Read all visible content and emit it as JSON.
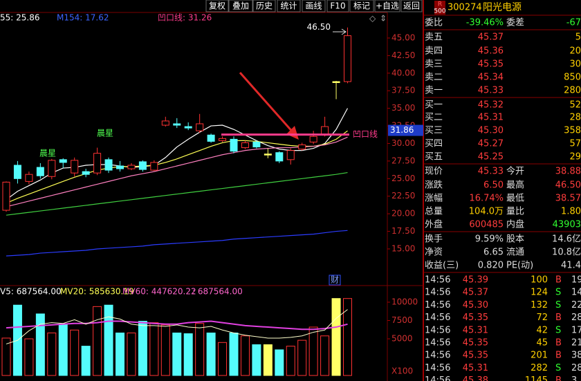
{
  "toolbar": [
    "复权",
    "叠加",
    "历史",
    "统计",
    "画线",
    "F10",
    "标记",
    "+自选",
    "返回"
  ],
  "chart_data": {
    "type": "candlestick",
    "header": [
      "55: 25.86",
      "M154: 17.62",
      "凹口线: 31.26"
    ],
    "ylim": [
      8.8,
      48.44
    ],
    "yticks": [
      {
        "value": 45,
        "label": "45.00"
      },
      {
        "value": 42.5,
        "label": "42.50"
      },
      {
        "value": 40,
        "label": "40.00"
      },
      {
        "value": 37.5,
        "label": "37.50"
      },
      {
        "value": 35,
        "label": "35.00"
      },
      {
        "value": 32.5,
        "label": "32.50"
      },
      {
        "value": 30,
        "label": "30.00"
      },
      {
        "value": 27.5,
        "label": "27.50"
      },
      {
        "value": 25,
        "label": "25.00"
      },
      {
        "value": 22.5,
        "label": "22.50"
      },
      {
        "value": 20,
        "label": "20.00"
      },
      {
        "value": 17.5,
        "label": "17.50"
      },
      {
        "value": 15,
        "label": "15.00"
      }
    ],
    "up_color": "#ff3232",
    "down_color": "#54fcfc",
    "flat_color": "#ffff66",
    "open": [
      20.5,
      26.9,
      24.6,
      26.6,
      25.3,
      27.7,
      25.8,
      26.0,
      25.8,
      27.7,
      26.8,
      26.4,
      27.4,
      26.2,
      32.6,
      32.8,
      32.4,
      31.8,
      31.2,
      30.4,
      30.6,
      29.4,
      30.2,
      28.5,
      28.7,
      27.7,
      29.2,
      30.2,
      31.3,
      38.8,
      38.8
    ],
    "high": [
      24.6,
      27.5,
      26.0,
      27.2,
      27.8,
      27.9,
      28.0,
      26.4,
      29.4,
      28.0,
      27.5,
      27.2,
      27.6,
      27.6,
      33.8,
      33.6,
      33.0,
      34.2,
      31.4,
      31.0,
      31.0,
      30.4,
      30.4,
      29.3,
      28.9,
      29.3,
      30.1,
      31.8,
      33.8,
      38.9,
      46.5
    ],
    "low": [
      20.3,
      24.3,
      24.2,
      25.0,
      24.9,
      26.5,
      25.3,
      25.2,
      25.5,
      25.8,
      26.0,
      26.2,
      26.0,
      26.1,
      32.4,
      32.2,
      31.9,
      31.5,
      30.1,
      30.2,
      28.6,
      29.2,
      29.3,
      27.9,
      27.2,
      27.0,
      29.0,
      29.9,
      31.0,
      36.3,
      38.57
    ],
    "close": [
      24.5,
      25.0,
      25.6,
      25.4,
      27.6,
      27.3,
      27.6,
      25.6,
      28.6,
      26.2,
      26.4,
      26.9,
      26.3,
      27.3,
      33.2,
      32.6,
      32.2,
      32.8,
      30.3,
      30.7,
      28.9,
      30.1,
      29.5,
      28.5,
      27.5,
      29.0,
      29.8,
      31.0,
      32.4,
      38.8,
      45.33
    ],
    "ma_lines": [
      {
        "color": "#ffffff",
        "values": [
          22.0,
          23.2,
          24.0,
          24.8,
          25.8,
          26.5,
          26.6,
          26.9,
          27.0,
          27.0,
          26.8,
          26.6,
          26.7,
          26.9,
          28.0,
          29.5,
          30.6,
          31.6,
          32.5,
          32.6,
          32.0,
          31.2,
          30.4,
          29.7,
          29.2,
          29.0,
          29.0,
          29.3,
          30.0,
          32.0,
          35.0
        ]
      },
      {
        "color": "#ffff55",
        "values": [
          21.5,
          22.2,
          22.8,
          23.4,
          24.0,
          24.6,
          25.2,
          25.7,
          26.2,
          26.5,
          26.7,
          26.7,
          26.8,
          26.9,
          27.3,
          27.8,
          28.4,
          29.0,
          29.6,
          30.1,
          30.4,
          30.4,
          30.3,
          30.1,
          29.9,
          29.7,
          29.6,
          29.6,
          29.9,
          30.6,
          31.8
        ]
      },
      {
        "color": "#ff80c0",
        "values": [
          21.0,
          21.4,
          21.8,
          22.2,
          22.6,
          23.0,
          23.4,
          23.8,
          24.2,
          24.6,
          25.0,
          25.4,
          25.7,
          26.0,
          26.4,
          26.8,
          27.2,
          27.6,
          28.0,
          28.4,
          28.7,
          29.0,
          29.2,
          29.3,
          29.4,
          29.4,
          29.5,
          29.6,
          29.8,
          30.2,
          30.9
        ]
      },
      {
        "color": "#40d040",
        "values": [
          19.8,
          20.0,
          20.2,
          20.4,
          20.6,
          20.8,
          21.0,
          21.2,
          21.4,
          21.6,
          21.8,
          22.0,
          22.2,
          22.4,
          22.6,
          22.8,
          23.0,
          23.2,
          23.4,
          23.6,
          23.8,
          24.0,
          24.2,
          24.4,
          24.6,
          24.8,
          25.0,
          25.2,
          25.4,
          25.6,
          25.86
        ]
      },
      {
        "color": "#2b3cff",
        "values": [
          14.0,
          14.1,
          14.2,
          14.4,
          14.5,
          14.6,
          14.7,
          14.8,
          15.0,
          15.1,
          15.2,
          15.3,
          15.4,
          15.6,
          15.7,
          15.8,
          15.9,
          16.0,
          16.1,
          16.2,
          16.4,
          16.5,
          16.6,
          16.7,
          16.8,
          16.9,
          17.0,
          17.1,
          17.3,
          17.5,
          17.62
        ]
      }
    ],
    "notch_line": {
      "value": 31.26,
      "label": "凹口线",
      "color": "#ff3c8c"
    },
    "last_price_tag": 31.86,
    "high_label": {
      "value": 46.5,
      "label": "46.50"
    },
    "annotations": [
      "晨星",
      "晨星",
      "财"
    ],
    "volume": {
      "header": [
        "V5: 687564.00",
        "MV20: 585630.19",
        "MV60: 447620.22",
        ": 687564.00"
      ],
      "ylim": [
        0,
        10660
      ],
      "yticks": [
        5000,
        7500,
        10000
      ],
      "unit": "X100",
      "values": [
        5100,
        9600,
        5000,
        8400,
        5800,
        7000,
        6200,
        4000,
        9400,
        9600,
        5800,
        5800,
        7400,
        7200,
        6900,
        5800,
        5700,
        7100,
        5800,
        4500,
        5800,
        5400,
        4200,
        4200,
        3500,
        4000,
        4800,
        6600,
        5400,
        10500,
        10500
      ],
      "lines": [
        {
          "color": "#e040e0",
          "values": [
            6500,
            6600,
            6700,
            6800,
            6900,
            7000,
            7100,
            7100,
            7200,
            7400,
            7400,
            7300,
            7200,
            7100,
            7000,
            7000,
            7200,
            7300,
            7400,
            7200,
            7000,
            6800,
            6700,
            6600,
            6500,
            6400,
            6300,
            6300,
            6400,
            6600,
            7000
          ]
        },
        {
          "color": "#ffffcc",
          "values": [
            4300,
            4800,
            6100,
            7000,
            7200,
            7100,
            7600,
            7000,
            7600,
            8000,
            7700,
            7000,
            6800,
            6800,
            6700,
            6900,
            6600,
            6500,
            6700,
            6200,
            5800,
            5500,
            5300,
            5100,
            5100,
            5200,
            5400,
            5900,
            6200,
            7800,
            9000
          ]
        }
      ]
    }
  },
  "quote": {
    "badge": [
      "R",
      "500"
    ],
    "code": "300274",
    "name": "阳光电源",
    "ratio_row": [
      "委比",
      "-39.46%",
      "委差",
      "-67"
    ],
    "order_book": [
      [
        "卖五",
        "45.37",
        "5"
      ],
      [
        "卖四",
        "45.36",
        "20"
      ],
      [
        "卖三",
        "45.35",
        "30"
      ],
      [
        "卖二",
        "45.34",
        "850"
      ],
      [
        "卖一",
        "45.33",
        "280"
      ],
      [
        "买一",
        "45.32",
        "52"
      ],
      [
        "买二",
        "45.31",
        "28"
      ],
      [
        "买三",
        "45.30",
        "358"
      ],
      [
        "买四",
        "45.27",
        "57"
      ],
      [
        "买五",
        "45.25",
        "29"
      ]
    ],
    "stats": [
      [
        "现价",
        "45.33",
        "今开",
        "38.88"
      ],
      [
        "涨跌",
        "6.50",
        "最高",
        "46.50"
      ],
      [
        "涨幅",
        "16.74%",
        "最低",
        "38.57"
      ],
      [
        "总量",
        "104.0万",
        "量比",
        "1.80"
      ],
      [
        "外盘",
        "600485",
        "内盘",
        "43903"
      ],
      [
        "换手",
        "9.59%",
        "股本",
        "14.6亿"
      ],
      [
        "净资",
        "6.65",
        "流通",
        "10.8亿"
      ],
      [
        "收益(三)",
        "0.820",
        "PE(动)",
        "41.4"
      ]
    ],
    "ticks": [
      [
        "14:56",
        "45.39",
        "100",
        "B",
        "19"
      ],
      [
        "14:56",
        "45.37",
        "124",
        "S",
        "14"
      ],
      [
        "14:56",
        "45.30",
        "132",
        "S",
        "22"
      ],
      [
        "14:56",
        "45.35",
        "72",
        "B",
        "28"
      ],
      [
        "14:56",
        "45.31",
        "42",
        "S",
        "17"
      ],
      [
        "14:56",
        "45.35",
        "45",
        "B",
        "21"
      ],
      [
        "14:56",
        "45.35",
        "201",
        "B",
        "38"
      ],
      [
        "14:56",
        "45.31",
        "282",
        "S",
        "28"
      ],
      [
        "14:56",
        "45.38",
        "1145",
        "B",
        "3"
      ]
    ]
  }
}
